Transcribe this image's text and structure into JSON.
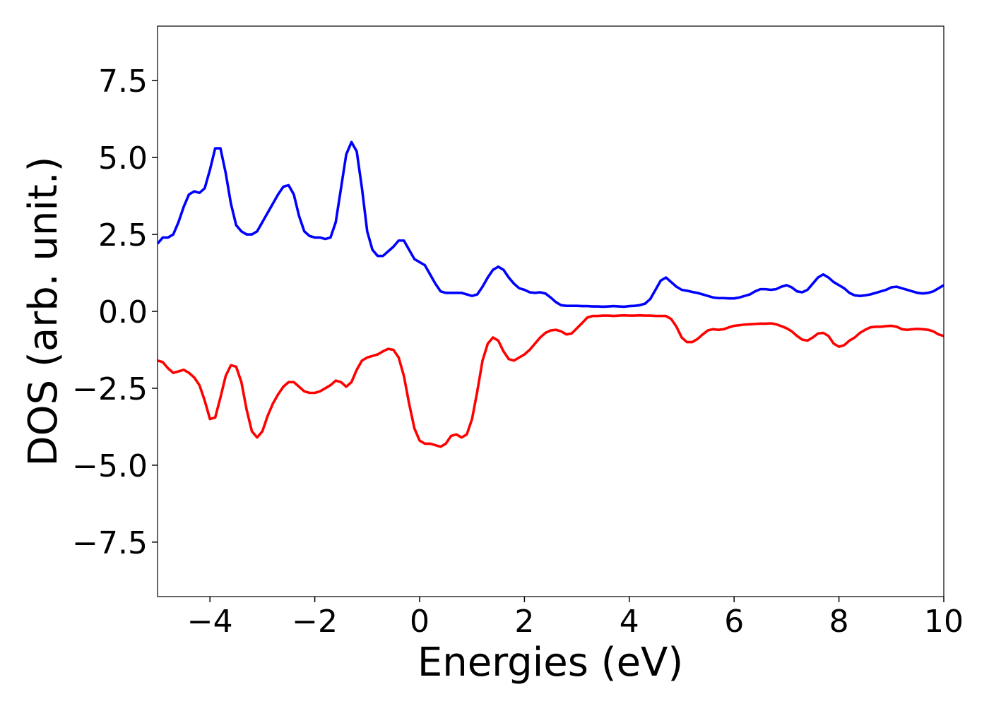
{
  "chart_data": {
    "type": "line",
    "xlabel": "Energies (eV)",
    "ylabel": "DOS (arb. unit.)",
    "x": [
      -5,
      -4.9,
      -4.8,
      -4.7,
      -4.6,
      -4.5,
      -4.4,
      -4.3,
      -4.2,
      -4.1,
      -4,
      -3.9,
      -3.8,
      -3.7,
      -3.6,
      -3.5,
      -3.4,
      -3.3,
      -3.2,
      -3.1,
      -3,
      -2.9,
      -2.8,
      -2.7,
      -2.6,
      -2.5,
      -2.4,
      -2.3,
      -2.2,
      -2.1,
      -2,
      -1.9,
      -1.8,
      -1.7,
      -1.6,
      -1.5,
      -1.4,
      -1.3,
      -1.2,
      -1.1,
      -1,
      -0.9,
      -0.8,
      -0.7,
      -0.6,
      -0.5,
      -0.4,
      -0.3,
      -0.2,
      -0.1,
      0,
      0.1,
      0.2,
      0.3,
      0.4,
      0.5,
      0.6,
      0.7,
      0.8,
      0.9,
      1,
      1.1,
      1.2,
      1.3,
      1.4,
      1.5,
      1.6,
      1.7,
      1.8,
      1.9,
      2,
      2.1,
      2.2,
      2.3,
      2.4,
      2.5,
      2.6,
      2.7,
      2.8,
      2.9,
      3,
      3.1,
      3.2,
      3.3,
      3.4,
      3.5,
      3.6,
      3.7,
      3.8,
      3.9,
      4,
      4.1,
      4.2,
      4.3,
      4.4,
      4.5,
      4.6,
      4.7,
      4.8,
      4.9,
      5,
      5.1,
      5.2,
      5.3,
      5.4,
      5.5,
      5.6,
      5.7,
      5.8,
      5.9,
      6,
      6.1,
      6.2,
      6.3,
      6.4,
      6.5,
      6.6,
      6.7,
      6.8,
      6.9,
      7,
      7.1,
      7.2,
      7.3,
      7.4,
      7.5,
      7.6,
      7.7,
      7.8,
      7.9,
      8,
      8.1,
      8.2,
      8.3,
      8.4,
      8.5,
      8.6,
      8.7,
      8.8,
      8.9,
      9,
      9.1,
      9.2,
      9.3,
      9.4,
      9.5,
      9.6,
      9.7,
      9.8,
      9.9,
      10
    ],
    "series": [
      {
        "color": "#0000ff",
        "values": [
          2.2,
          2.4,
          2.4,
          2.5,
          2.9,
          3.4,
          3.8,
          3.9,
          3.85,
          4.0,
          4.6,
          5.3,
          5.3,
          4.5,
          3.5,
          2.8,
          2.6,
          2.5,
          2.5,
          2.6,
          2.9,
          3.2,
          3.5,
          3.8,
          4.05,
          4.1,
          3.8,
          3.1,
          2.6,
          2.45,
          2.4,
          2.4,
          2.35,
          2.4,
          2.9,
          4.0,
          5.1,
          5.5,
          5.2,
          4.0,
          2.6,
          2.0,
          1.8,
          1.8,
          1.95,
          2.1,
          2.3,
          2.3,
          2.0,
          1.7,
          1.6,
          1.5,
          1.2,
          0.9,
          0.65,
          0.6,
          0.6,
          0.6,
          0.6,
          0.55,
          0.5,
          0.55,
          0.8,
          1.1,
          1.35,
          1.45,
          1.35,
          1.1,
          0.9,
          0.75,
          0.7,
          0.62,
          0.6,
          0.62,
          0.58,
          0.45,
          0.3,
          0.2,
          0.18,
          0.18,
          0.18,
          0.17,
          0.17,
          0.16,
          0.16,
          0.15,
          0.16,
          0.17,
          0.16,
          0.15,
          0.17,
          0.18,
          0.2,
          0.25,
          0.4,
          0.7,
          1.0,
          1.1,
          0.95,
          0.8,
          0.7,
          0.67,
          0.63,
          0.6,
          0.55,
          0.5,
          0.45,
          0.43,
          0.43,
          0.42,
          0.42,
          0.45,
          0.5,
          0.55,
          0.65,
          0.72,
          0.72,
          0.7,
          0.72,
          0.8,
          0.85,
          0.78,
          0.65,
          0.62,
          0.7,
          0.9,
          1.1,
          1.2,
          1.1,
          0.95,
          0.85,
          0.75,
          0.6,
          0.52,
          0.5,
          0.52,
          0.55,
          0.6,
          0.65,
          0.7,
          0.78,
          0.8,
          0.75,
          0.7,
          0.65,
          0.6,
          0.58,
          0.6,
          0.65,
          0.75,
          0.85
        ]
      },
      {
        "color": "#ff0000",
        "values": [
          -1.6,
          -1.65,
          -1.85,
          -2.0,
          -1.95,
          -1.9,
          -2.0,
          -2.15,
          -2.4,
          -2.9,
          -3.5,
          -3.45,
          -2.8,
          -2.1,
          -1.75,
          -1.8,
          -2.3,
          -3.2,
          -3.9,
          -4.1,
          -3.9,
          -3.4,
          -3.0,
          -2.7,
          -2.45,
          -2.3,
          -2.3,
          -2.45,
          -2.6,
          -2.65,
          -2.65,
          -2.6,
          -2.5,
          -2.4,
          -2.25,
          -2.3,
          -2.45,
          -2.3,
          -1.9,
          -1.6,
          -1.5,
          -1.45,
          -1.4,
          -1.3,
          -1.22,
          -1.25,
          -1.5,
          -2.1,
          -3.0,
          -3.8,
          -4.2,
          -4.3,
          -4.3,
          -4.35,
          -4.4,
          -4.3,
          -4.05,
          -4.0,
          -4.1,
          -4.0,
          -3.5,
          -2.6,
          -1.6,
          -1.05,
          -0.85,
          -0.95,
          -1.3,
          -1.55,
          -1.6,
          -1.5,
          -1.4,
          -1.25,
          -1.05,
          -0.85,
          -0.7,
          -0.62,
          -0.6,
          -0.65,
          -0.75,
          -0.72,
          -0.55,
          -0.38,
          -0.2,
          -0.15,
          -0.15,
          -0.14,
          -0.14,
          -0.15,
          -0.14,
          -0.13,
          -0.14,
          -0.14,
          -0.13,
          -0.14,
          -0.14,
          -0.15,
          -0.15,
          -0.15,
          -0.25,
          -0.5,
          -0.85,
          -1.0,
          -1.0,
          -0.9,
          -0.75,
          -0.62,
          -0.58,
          -0.6,
          -0.58,
          -0.52,
          -0.47,
          -0.45,
          -0.43,
          -0.42,
          -0.41,
          -0.4,
          -0.4,
          -0.39,
          -0.42,
          -0.48,
          -0.55,
          -0.65,
          -0.8,
          -0.92,
          -0.95,
          -0.85,
          -0.72,
          -0.7,
          -0.8,
          -1.05,
          -1.15,
          -1.1,
          -0.95,
          -0.85,
          -0.7,
          -0.6,
          -0.52,
          -0.5,
          -0.5,
          -0.48,
          -0.47,
          -0.5,
          -0.58,
          -0.6,
          -0.58,
          -0.57,
          -0.58,
          -0.6,
          -0.65,
          -0.75,
          -0.8
        ]
      }
    ],
    "xlim": [
      -5,
      10
    ],
    "xticks": [
      {
        "value": -4,
        "label": "−4"
      },
      {
        "value": -2,
        "label": "−2"
      },
      0,
      2,
      4,
      6,
      8,
      10
    ],
    "ylim": [
      -9.27,
      9.27
    ],
    "yticks": [
      {
        "value": -7.5,
        "label": "−7.5"
      },
      {
        "value": -5,
        "label": "−5.0"
      },
      {
        "value": -2.5,
        "label": "−2.5"
      },
      {
        "value": 0,
        "label": "0.0"
      },
      {
        "value": 2.5,
        "label": "2.5"
      },
      {
        "value": 5,
        "label": "5.0"
      },
      {
        "value": 7.5,
        "label": "7.5"
      }
    ],
    "grid": false
  }
}
